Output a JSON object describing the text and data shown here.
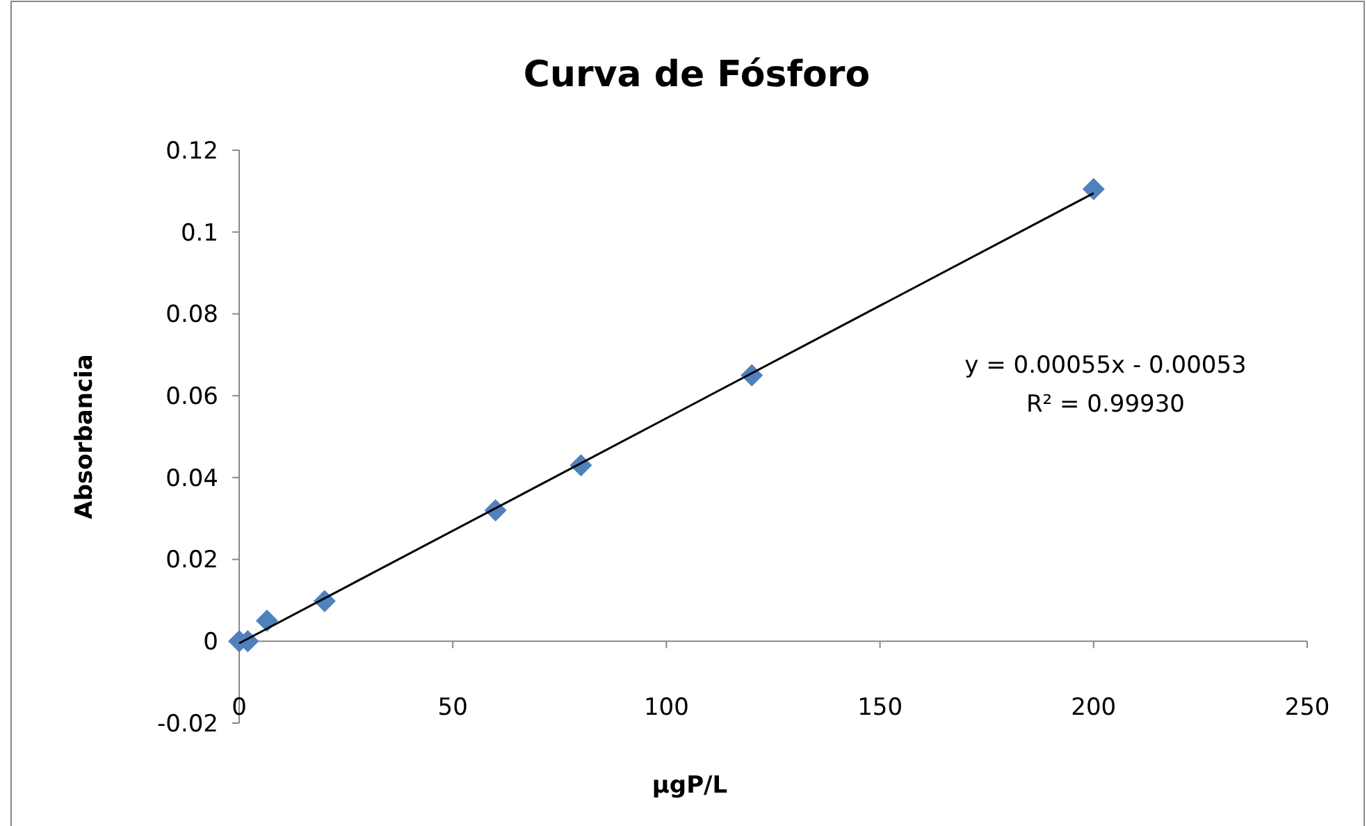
{
  "chart_data": {
    "type": "scatter",
    "title": "Curva de Fósforo",
    "xlabel": "μgP/L",
    "ylabel": "Absorbancia",
    "x": [
      0,
      2,
      6.5,
      20,
      60,
      80,
      120,
      200
    ],
    "series": [
      {
        "color": "#4f81bd",
        "values": [
          0,
          0,
          0.005,
          0.0098,
          0.032,
          0.043,
          0.065,
          0.1105
        ],
        "marker": "diamond"
      },
      {
        "type": "line",
        "color": "#000000",
        "x": [
          0,
          200
        ],
        "values": [
          -0.0005,
          0.1095
        ],
        "marker": "none",
        "line_style": "solid"
      }
    ],
    "xlim": [
      0,
      250
    ],
    "xticks": [
      0,
      50,
      100,
      150,
      200,
      250
    ],
    "ylim": [
      -0.02,
      0.12
    ],
    "yticks": [
      -0.02,
      0,
      0.02,
      0.04,
      0.06,
      0.08,
      0.1,
      0.12
    ],
    "annotations": [
      "y = 0.00055x - 0.00053",
      "R² = 0.99930"
    ],
    "grid": false
  }
}
